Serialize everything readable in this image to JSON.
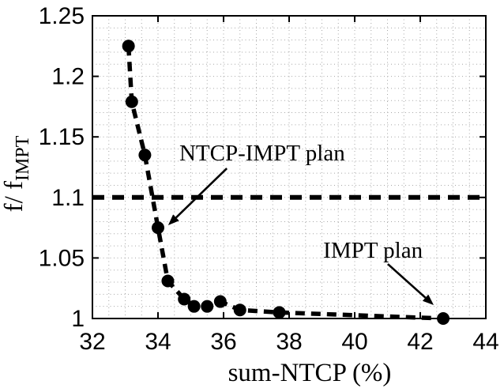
{
  "figure": {
    "background": "#ffffff"
  },
  "chart_data": {
    "type": "line",
    "title": "",
    "xlabel": "sum-NTCP (%)",
    "ylabel": "f/ f_IMPT",
    "ylabel_base": "f/ f",
    "ylabel_subscript": "IMPT",
    "xlim": [
      32,
      44
    ],
    "ylim": [
      1.0,
      1.25
    ],
    "xticks": [
      32,
      34,
      36,
      38,
      40,
      42,
      44
    ],
    "xtick_labels": [
      "32",
      "34",
      "36",
      "38",
      "40",
      "42",
      "44"
    ],
    "yticks": [
      1.0,
      1.05,
      1.1,
      1.15,
      1.2,
      1.25
    ],
    "ytick_labels": [
      "1",
      "1.05",
      "1.1",
      "1.15",
      "1.2",
      "1.25"
    ],
    "grid": {
      "style": "dotted-minor",
      "x_step": 0.5,
      "y_step": 0.01
    },
    "legend": null,
    "series": [
      {
        "name": "ntcp-tradeoff-curve",
        "type": "dashed-line-with-markers",
        "marker": "filled-circle",
        "color": "#000000",
        "points": [
          [
            33.1,
            1.225
          ],
          [
            33.2,
            1.179
          ],
          [
            33.6,
            1.135
          ],
          [
            34.0,
            1.075
          ],
          [
            34.3,
            1.031
          ],
          [
            34.8,
            1.016
          ],
          [
            35.1,
            1.01
          ],
          [
            35.5,
            1.01
          ],
          [
            35.9,
            1.014
          ],
          [
            36.5,
            1.007
          ],
          [
            37.7,
            1.005
          ],
          [
            42.7,
            1.0
          ]
        ]
      },
      {
        "name": "threshold-line",
        "type": "dashed-horizontal-line",
        "color": "#000000",
        "y": 1.1
      }
    ],
    "annotations": [
      {
        "id": "ntcp-impt-plan",
        "text": "NTCP-IMPT plan",
        "text_x": 34.65,
        "text_y": 1.1305,
        "arrow": {
          "from_x": 36.1,
          "from_y": 1.124,
          "to_x": 34.31,
          "to_y": 1.077
        }
      },
      {
        "id": "impt-plan",
        "text": "IMPT plan",
        "text_x": 39.04,
        "text_y": 1.0503,
        "arrow": {
          "from_x": 41.01,
          "from_y": 1.045,
          "to_x": 42.41,
          "to_y": 1.0111
        }
      }
    ],
    "colors": {
      "ink": "#000000",
      "grid": "#a6a6a6",
      "background": "#ffffff"
    }
  }
}
